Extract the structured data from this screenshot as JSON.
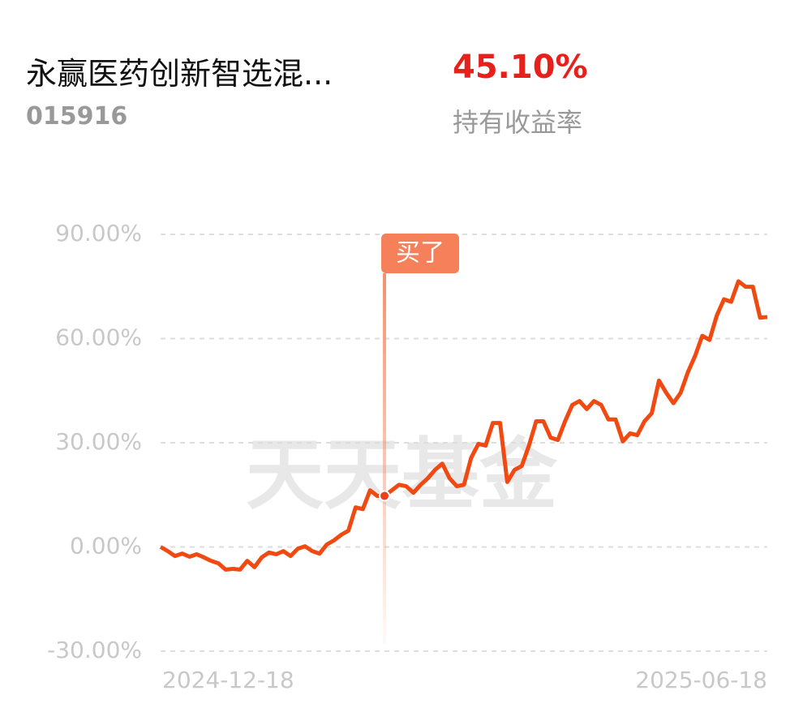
{
  "header": {
    "title": "永赢医药创新智选混...",
    "code": "015916",
    "return": "45.10%",
    "return_label": "持有收益率"
  },
  "chart_data": {
    "type": "line",
    "watermark": "天天基金",
    "categories": [
      "2024-12-18",
      null,
      null,
      null,
      null,
      null,
      null,
      null,
      null,
      null,
      null,
      null,
      null,
      null,
      null,
      null,
      null,
      null,
      null,
      null,
      null,
      null,
      null,
      null,
      null,
      null,
      null,
      null,
      null,
      null,
      null,
      null,
      null,
      null,
      null,
      null,
      null,
      null,
      null,
      null,
      null,
      null,
      null,
      null,
      null,
      null,
      null,
      null,
      null,
      null,
      null,
      null,
      null,
      null,
      null,
      null,
      null,
      null,
      null,
      null,
      null,
      null,
      null,
      null,
      null,
      null,
      null,
      null,
      null,
      null,
      null,
      null,
      null,
      null,
      null,
      null,
      null,
      null,
      null,
      null,
      null,
      null,
      null,
      null,
      "2025-06-18"
    ],
    "series": [
      {
        "color": "#f04a12",
        "values": [
          0,
          -1.2,
          -2.6,
          -1.9,
          -2.8,
          -2.1,
          -3.0,
          -4.0,
          -4.7,
          -6.5,
          -6.3,
          -6.5,
          -4.0,
          -5.8,
          -3.0,
          -1.6,
          -2.1,
          -1.2,
          -2.6,
          -0.5,
          0.2,
          -1.2,
          -1.9,
          0.7,
          1.9,
          3.5,
          4.7,
          11.4,
          10.9,
          16.3,
          14.7,
          14.7,
          16.3,
          17.9,
          17.5,
          15.6,
          17.9,
          19.8,
          22.2,
          24.0,
          19.8,
          17.5,
          17.9,
          25.7,
          29.7,
          29.2,
          35.7,
          35.7,
          18.7,
          22.2,
          23.3,
          29.2,
          36.2,
          36.2,
          31.5,
          30.8,
          36.2,
          40.9,
          42.0,
          39.7,
          42.0,
          40.9,
          36.7,
          36.7,
          30.4,
          32.7,
          32.2,
          36.2,
          38.5,
          47.9,
          44.4,
          41.4,
          44.4,
          50.3,
          55.0,
          60.8,
          59.6,
          66.6,
          71.3,
          70.6,
          76.5,
          74.9,
          74.9,
          66.0,
          66.2
        ]
      }
    ],
    "buy_marker": {
      "label": "买了",
      "index": 31
    },
    "ylim": [
      -30,
      90
    ],
    "yticks": [
      {
        "value": -30,
        "label": "-30.00%"
      },
      {
        "value": 0,
        "label": "0.00%"
      },
      {
        "value": 30,
        "label": "30.00%"
      },
      {
        "value": 60,
        "label": "60.00%"
      },
      {
        "value": 90,
        "label": "90.00%"
      }
    ],
    "grid": true
  }
}
